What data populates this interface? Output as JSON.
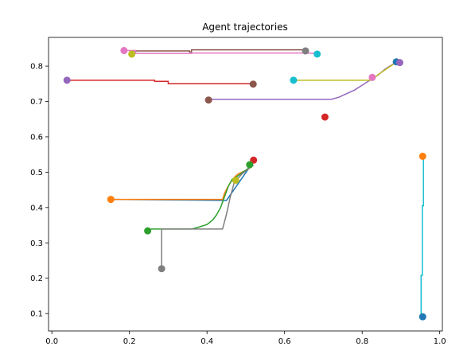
{
  "chart_data": {
    "type": "line",
    "title": "Agent trajectories",
    "xlabel": "",
    "ylabel": "",
    "xlim": [
      -0.0086,
      1.0068
    ],
    "ylim": [
      0.0508,
      0.8812
    ],
    "grid": false,
    "x_ticks": [
      0.0,
      0.2,
      0.4,
      0.6,
      0.8,
      1.0
    ],
    "x_tick_labels": [
      "0.0",
      "0.2",
      "0.4",
      "0.6",
      "0.8",
      "1.0"
    ],
    "y_ticks": [
      0.1,
      0.2,
      0.3,
      0.4,
      0.5,
      0.6,
      0.7,
      0.8
    ],
    "y_tick_labels": [
      "0.1",
      "0.2",
      "0.3",
      "0.4",
      "0.5",
      "0.6",
      "0.7",
      "0.8"
    ],
    "colors": {
      "blue": "#1f77b4",
      "orange": "#ff7f0e",
      "green": "#2ca02c",
      "red": "#d62728",
      "purple": "#9467bd",
      "brown": "#8c564b",
      "pink": "#e377c2",
      "gray": "#7f7f7f",
      "olive": "#bcbd22",
      "cyan": "#17becf"
    },
    "series": [
      {
        "color": "#1f77b4",
        "points": [
          [
            0.511,
            0.516
          ],
          [
            0.45,
            0.42
          ],
          [
            0.156,
            0.423
          ]
        ]
      },
      {
        "color": "#ff7f0e",
        "points": [
          [
            0.152,
            0.423
          ],
          [
            0.44,
            0.423
          ],
          [
            0.445,
            0.44
          ],
          [
            0.452,
            0.455
          ],
          [
            0.46,
            0.47
          ],
          [
            0.47,
            0.485
          ],
          [
            0.48,
            0.495
          ],
          [
            0.5,
            0.505
          ],
          [
            0.515,
            0.515
          ]
        ]
      },
      {
        "color": "#2ca02c",
        "points": [
          [
            0.247,
            0.334
          ],
          [
            0.256,
            0.339
          ],
          [
            0.36,
            0.339
          ],
          [
            0.38,
            0.345
          ],
          [
            0.4,
            0.352
          ],
          [
            0.415,
            0.365
          ],
          [
            0.425,
            0.38
          ],
          [
            0.435,
            0.4
          ],
          [
            0.445,
            0.43
          ],
          [
            0.455,
            0.46
          ],
          [
            0.465,
            0.48
          ],
          [
            0.48,
            0.49
          ],
          [
            0.495,
            0.502
          ],
          [
            0.512,
            0.515
          ]
        ]
      },
      {
        "color": "#d62728",
        "points": [
          [
            0.039,
            0.76
          ],
          [
            0.265,
            0.76
          ],
          [
            0.265,
            0.757
          ],
          [
            0.3,
            0.757
          ],
          [
            0.3,
            0.75
          ],
          [
            0.517,
            0.75
          ]
        ]
      },
      {
        "color": "#9467bd",
        "points": [
          [
            0.404,
            0.706
          ],
          [
            0.72,
            0.706
          ],
          [
            0.74,
            0.712
          ],
          [
            0.76,
            0.722
          ],
          [
            0.78,
            0.732
          ],
          [
            0.8,
            0.746
          ],
          [
            0.82,
            0.76
          ],
          [
            0.84,
            0.774
          ],
          [
            0.86,
            0.792
          ],
          [
            0.88,
            0.806
          ],
          [
            0.9,
            0.812
          ]
        ]
      },
      {
        "color": "#8c564b",
        "points": [
          [
            0.208,
            0.843
          ],
          [
            0.355,
            0.843
          ],
          [
            0.355,
            0.84
          ],
          [
            0.36,
            0.84
          ],
          [
            0.36,
            0.846
          ],
          [
            0.65,
            0.846
          ],
          [
            0.655,
            0.846
          ]
        ]
      },
      {
        "color": "#e377c2",
        "points": [
          [
            0.186,
            0.844
          ],
          [
            0.216,
            0.844
          ],
          [
            0.216,
            0.836
          ],
          [
            0.36,
            0.836
          ],
          [
            0.36,
            0.837
          ],
          [
            0.655,
            0.837
          ],
          [
            0.68,
            0.836
          ]
        ]
      },
      {
        "color": "#7f7f7f",
        "points": [
          [
            0.283,
            0.227
          ],
          [
            0.283,
            0.339
          ],
          [
            0.44,
            0.339
          ],
          [
            0.45,
            0.38
          ],
          [
            0.46,
            0.43
          ],
          [
            0.47,
            0.47
          ],
          [
            0.49,
            0.495
          ],
          [
            0.51,
            0.512
          ],
          [
            0.52,
            0.52
          ]
        ]
      },
      {
        "color": "#bcbd22",
        "points": [
          [
            0.623,
            0.76
          ],
          [
            0.825,
            0.76
          ],
          [
            0.84,
            0.775
          ],
          [
            0.86,
            0.79
          ],
          [
            0.88,
            0.805
          ],
          [
            0.893,
            0.811
          ]
        ]
      },
      {
        "color": "#17becf",
        "points": [
          [
            0.956,
            0.091
          ],
          [
            0.952,
            0.091
          ],
          [
            0.952,
            0.208
          ],
          [
            0.955,
            0.208
          ],
          [
            0.955,
            0.405
          ],
          [
            0.958,
            0.405
          ],
          [
            0.958,
            0.544
          ]
        ]
      }
    ],
    "markers": [
      {
        "color": "#1f77b4",
        "x": 0.956,
        "y": 0.091
      },
      {
        "color": "#ff7f0e",
        "x": 0.956,
        "y": 0.545
      },
      {
        "color": "#2ca02c",
        "x": 0.247,
        "y": 0.334
      },
      {
        "color": "#d62728",
        "x": 0.52,
        "y": 0.534
      },
      {
        "color": "#9467bd",
        "x": 0.039,
        "y": 0.76
      },
      {
        "color": "#8c564b",
        "x": 0.519,
        "y": 0.749
      },
      {
        "color": "#e377c2",
        "x": 0.186,
        "y": 0.844
      },
      {
        "color": "#7f7f7f",
        "x": 0.283,
        "y": 0.227
      },
      {
        "color": "#bcbd22",
        "x": 0.206,
        "y": 0.834
      },
      {
        "color": "#17becf",
        "x": 0.684,
        "y": 0.834
      },
      {
        "color": "#ff7f0e",
        "x": 0.152,
        "y": 0.423
      },
      {
        "color": "#bcbd22",
        "x": 0.474,
        "y": 0.477
      },
      {
        "color": "#2ca02c",
        "x": 0.51,
        "y": 0.521
      },
      {
        "color": "#8c564b",
        "x": 0.404,
        "y": 0.704
      },
      {
        "color": "#d62728",
        "x": 0.704,
        "y": 0.656
      },
      {
        "color": "#7f7f7f",
        "x": 0.654,
        "y": 0.843
      },
      {
        "color": "#17becf",
        "x": 0.623,
        "y": 0.76
      },
      {
        "color": "#e377c2",
        "x": 0.826,
        "y": 0.768
      },
      {
        "color": "#1f77b4",
        "x": 0.888,
        "y": 0.812
      },
      {
        "color": "#9467bd",
        "x": 0.897,
        "y": 0.81
      }
    ]
  }
}
